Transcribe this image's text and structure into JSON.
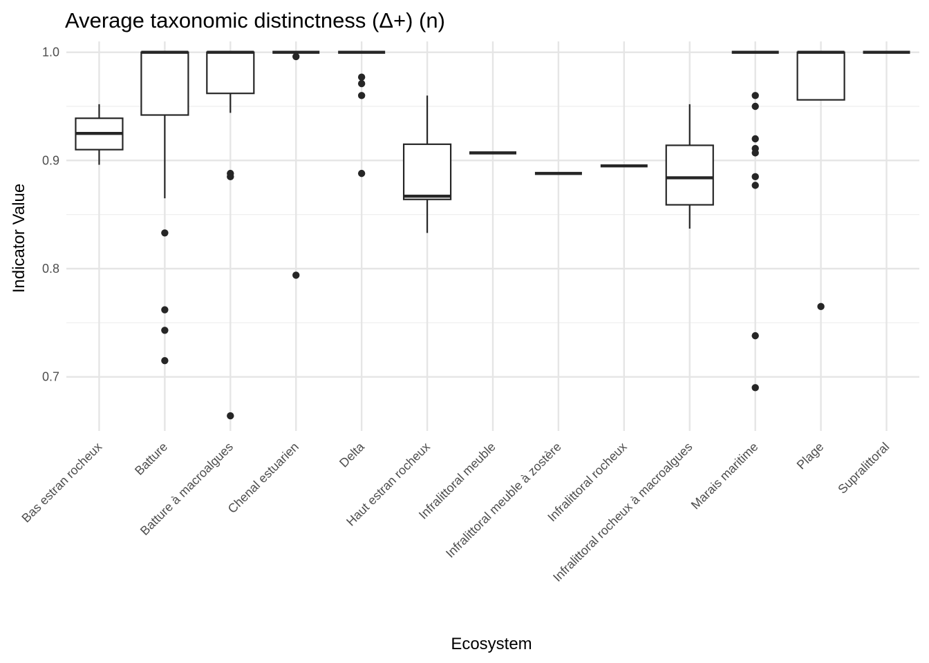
{
  "chart_data": {
    "type": "boxplot",
    "title": "Average taxonomic distinctness (Δ+) (n)",
    "xlabel": "Ecosystem",
    "ylabel": "Indicator Value",
    "ylim": [
      0.65,
      1.01
    ],
    "y_ticks": [
      0.7,
      0.8,
      0.9,
      1.0
    ],
    "y_tick_labels": [
      "0.7",
      "0.8",
      "0.9",
      "1.0"
    ],
    "grid": true,
    "legend": "none",
    "colors": {
      "box_line": "#262626",
      "box_fill": "#ffffff",
      "grid": "#e5e5e5"
    },
    "categories": [
      "Bas estran rocheux",
      "Batture",
      "Batture à macroalgues",
      "Chenal estuarien",
      "Delta",
      "Haut estran rocheux",
      "Infralittoral meuble",
      "Infralittoral meuble à zostère",
      "Infralittoral rocheux",
      "Infralittoral rocheux à macroalgues",
      "Marais maritime",
      "Plage",
      "Supralittoral"
    ],
    "boxes": [
      {
        "lower": 0.896,
        "q1": 0.91,
        "median": 0.925,
        "q3": 0.939,
        "upper": 0.952,
        "outliers": []
      },
      {
        "lower": 0.865,
        "q1": 0.942,
        "median": 1.0,
        "q3": 1.0,
        "upper": 1.0,
        "outliers": [
          0.833,
          0.762,
          0.743,
          0.715
        ]
      },
      {
        "lower": 0.944,
        "q1": 0.962,
        "median": 1.0,
        "q3": 1.0,
        "upper": 1.0,
        "outliers": [
          0.888,
          0.885,
          0.664
        ]
      },
      {
        "lower": 1.0,
        "q1": 1.0,
        "median": 1.0,
        "q3": 1.0,
        "upper": 1.0,
        "outliers": [
          0.996,
          0.794
        ]
      },
      {
        "lower": 1.0,
        "q1": 1.0,
        "median": 1.0,
        "q3": 1.0,
        "upper": 1.0,
        "outliers": [
          0.977,
          0.971,
          0.96,
          0.888
        ]
      },
      {
        "lower": 0.833,
        "q1": 0.864,
        "median": 0.867,
        "q3": 0.915,
        "upper": 0.96,
        "outliers": []
      },
      {
        "lower": 0.907,
        "q1": 0.907,
        "median": 0.907,
        "q3": 0.907,
        "upper": 0.907,
        "outliers": []
      },
      {
        "lower": 0.888,
        "q1": 0.888,
        "median": 0.888,
        "q3": 0.888,
        "upper": 0.888,
        "outliers": []
      },
      {
        "lower": 0.895,
        "q1": 0.895,
        "median": 0.895,
        "q3": 0.895,
        "upper": 0.895,
        "outliers": []
      },
      {
        "lower": 0.837,
        "q1": 0.859,
        "median": 0.884,
        "q3": 0.914,
        "upper": 0.952,
        "outliers": []
      },
      {
        "lower": 1.0,
        "q1": 1.0,
        "median": 1.0,
        "q3": 1.0,
        "upper": 1.0,
        "outliers": [
          0.96,
          0.95,
          0.92,
          0.911,
          0.907,
          0.885,
          0.877,
          0.738,
          0.69
        ]
      },
      {
        "lower": 0.956,
        "q1": 0.956,
        "median": 1.0,
        "q3": 1.0,
        "upper": 1.0,
        "outliers": [
          0.765
        ]
      },
      {
        "lower": 1.0,
        "q1": 1.0,
        "median": 1.0,
        "q3": 1.0,
        "upper": 1.0,
        "outliers": []
      }
    ]
  }
}
